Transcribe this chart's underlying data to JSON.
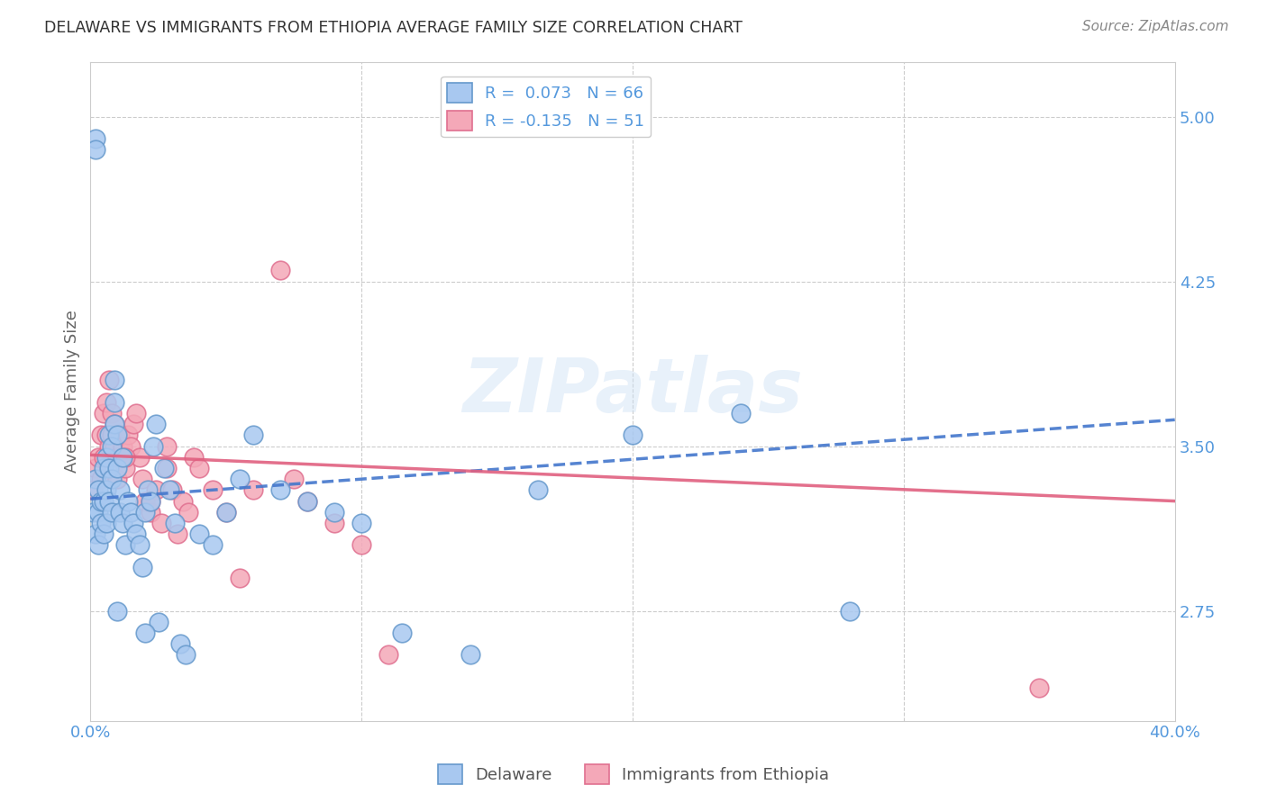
{
  "title": "DELAWARE VS IMMIGRANTS FROM ETHIOPIA AVERAGE FAMILY SIZE CORRELATION CHART",
  "source": "Source: ZipAtlas.com",
  "ylabel": "Average Family Size",
  "yticks": [
    2.75,
    3.5,
    4.25,
    5.0
  ],
  "xlim": [
    0.0,
    0.4
  ],
  "ylim": [
    2.25,
    5.25
  ],
  "watermark": "ZIPatlas",
  "legend_entry1": "R =  0.073   N = 66",
  "legend_entry2": "R = -0.135   N = 51",
  "legend_label1": "Delaware",
  "legend_label2": "Immigrants from Ethiopia",
  "delaware_color": "#a8c8f0",
  "ethiopia_color": "#f4a8b8",
  "delaware_edge": "#6699cc",
  "ethiopia_edge": "#e07090",
  "trend_delaware_color": "#4477cc",
  "trend_ethiopia_color": "#e06080",
  "background_color": "#ffffff",
  "grid_color": "#cccccc",
  "title_color": "#333333",
  "axis_color": "#5599dd",
  "trend_del_x0": 0.0,
  "trend_del_y0": 3.26,
  "trend_del_x1": 0.4,
  "trend_del_y1": 3.62,
  "trend_eth_x0": 0.0,
  "trend_eth_y0": 3.46,
  "trend_eth_x1": 0.4,
  "trend_eth_y1": 3.25,
  "delaware_x": [
    0.001,
    0.002,
    0.002,
    0.003,
    0.003,
    0.003,
    0.004,
    0.004,
    0.005,
    0.005,
    0.005,
    0.006,
    0.006,
    0.006,
    0.007,
    0.007,
    0.007,
    0.008,
    0.008,
    0.008,
    0.009,
    0.009,
    0.009,
    0.01,
    0.01,
    0.011,
    0.011,
    0.012,
    0.012,
    0.013,
    0.014,
    0.015,
    0.016,
    0.017,
    0.018,
    0.019,
    0.02,
    0.021,
    0.022,
    0.023,
    0.024,
    0.025,
    0.027,
    0.029,
    0.031,
    0.033,
    0.035,
    0.04,
    0.045,
    0.05,
    0.055,
    0.06,
    0.07,
    0.08,
    0.09,
    0.1,
    0.115,
    0.14,
    0.165,
    0.2,
    0.24,
    0.28,
    0.002,
    0.002,
    0.01,
    0.02
  ],
  "delaware_y": [
    3.2,
    3.1,
    3.35,
    3.3,
    3.2,
    3.05,
    3.25,
    3.15,
    3.4,
    3.25,
    3.1,
    3.45,
    3.3,
    3.15,
    3.55,
    3.4,
    3.25,
    3.5,
    3.35,
    3.2,
    3.8,
    3.7,
    3.6,
    3.55,
    3.4,
    3.3,
    3.2,
    3.45,
    3.15,
    3.05,
    3.25,
    3.2,
    3.15,
    3.1,
    3.05,
    2.95,
    3.2,
    3.3,
    3.25,
    3.5,
    3.6,
    2.7,
    3.4,
    3.3,
    3.15,
    2.6,
    2.55,
    3.1,
    3.05,
    3.2,
    3.35,
    3.55,
    3.3,
    3.25,
    3.2,
    3.15,
    2.65,
    2.55,
    3.3,
    3.55,
    3.65,
    2.75,
    4.9,
    4.85,
    2.75,
    2.65
  ],
  "ethiopia_x": [
    0.001,
    0.002,
    0.003,
    0.004,
    0.004,
    0.005,
    0.005,
    0.006,
    0.006,
    0.007,
    0.007,
    0.008,
    0.008,
    0.009,
    0.009,
    0.01,
    0.01,
    0.011,
    0.012,
    0.013,
    0.014,
    0.015,
    0.016,
    0.017,
    0.018,
    0.019,
    0.02,
    0.022,
    0.024,
    0.026,
    0.028,
    0.03,
    0.032,
    0.034,
    0.036,
    0.038,
    0.04,
    0.045,
    0.05,
    0.055,
    0.06,
    0.07,
    0.075,
    0.08,
    0.09,
    0.1,
    0.11,
    0.013,
    0.022,
    0.028,
    0.35
  ],
  "ethiopia_y": [
    3.3,
    3.4,
    3.45,
    3.35,
    3.55,
    3.45,
    3.65,
    3.7,
    3.55,
    3.5,
    3.8,
    3.65,
    3.55,
    3.5,
    3.6,
    3.45,
    3.35,
    3.55,
    3.5,
    3.4,
    3.55,
    3.5,
    3.6,
    3.65,
    3.45,
    3.35,
    3.25,
    3.2,
    3.3,
    3.15,
    3.4,
    3.3,
    3.1,
    3.25,
    3.2,
    3.45,
    3.4,
    3.3,
    3.2,
    2.9,
    3.3,
    4.3,
    3.35,
    3.25,
    3.15,
    3.05,
    2.55,
    3.45,
    3.25,
    3.5,
    2.4
  ]
}
